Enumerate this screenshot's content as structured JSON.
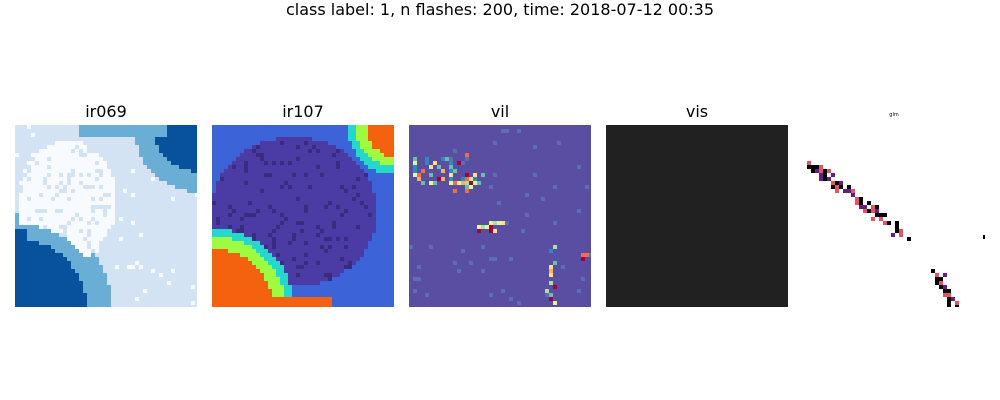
{
  "figure": {
    "title": "class label: 1, n flashes: 200, time: 2018-07-12 00:35"
  },
  "panels": [
    {
      "id": "ir069",
      "title": "ir069",
      "colormap": "blues"
    },
    {
      "id": "ir107",
      "title": "ir107",
      "colormap": "turbo"
    },
    {
      "id": "vil",
      "title": "vil",
      "colormap": "spectral"
    },
    {
      "id": "vis",
      "title": "vis",
      "colormap": "dark-gray"
    },
    {
      "id": "glm",
      "title": "glm",
      "colormap": "magma-on-white"
    }
  ],
  "colors": {
    "blue_white": "#f7fbff",
    "blue_light": "#d3e3f3",
    "blue_mid": "#6aaed6",
    "blue_dark": "#08519c",
    "turbo_indigo": "#4a3ba5",
    "turbo_blue": "#3d63d8",
    "turbo_cyan": "#25d8ce",
    "turbo_green": "#9dfc40",
    "turbo_orange": "#f5620f",
    "vil_base": "#5a4ea2",
    "vil_hot": "#9e0142",
    "vis_dark": "#212121",
    "glm_black": "#000004",
    "glm_purple": "#6a1c81",
    "glm_pink": "#e45563"
  }
}
